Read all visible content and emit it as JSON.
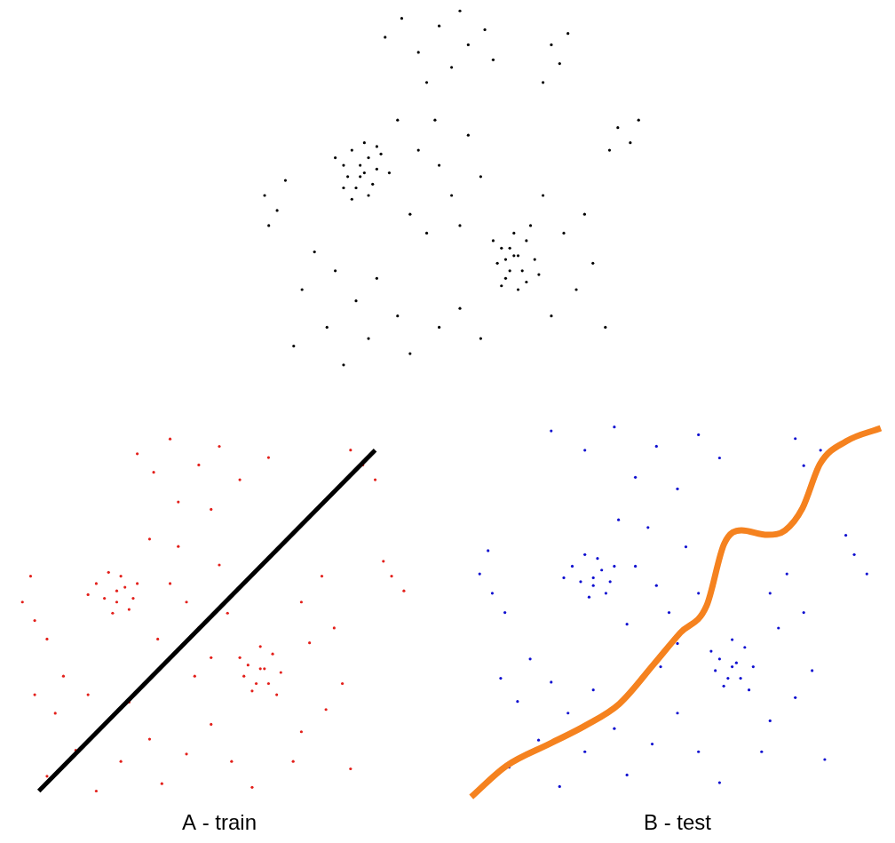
{
  "chart_data": [
    {
      "type": "scatter",
      "xlim": [
        0,
        100
      ],
      "ylim": [
        0,
        100
      ],
      "tick_labels": false,
      "grid": false,
      "series": [
        {
          "type": "scatter",
          "color": "#000000",
          "marker": "dot",
          "x": [
            22,
            24,
            26,
            28,
            30,
            25,
            29,
            23,
            27,
            31,
            26,
            28,
            20,
            33,
            24,
            27,
            30,
            22,
            60,
            62,
            64,
            66,
            61,
            65,
            63,
            68,
            59,
            62,
            66,
            64,
            58,
            67,
            63,
            61,
            69,
            60,
            32,
            36,
            40,
            45,
            50,
            52,
            56,
            42,
            48,
            58,
            72,
            74,
            76,
            70,
            88,
            91,
            93,
            86,
            3,
            6,
            8,
            4,
            40,
            45,
            48,
            44,
            52,
            38,
            50,
            55,
            35,
            42,
            15,
            20,
            12,
            25,
            30,
            18,
            10,
            28,
            35,
            22,
            38,
            45,
            50,
            55,
            72,
            78,
            82,
            75,
            80,
            70,
            85
          ],
          "values": [
            58,
            62,
            55,
            60,
            57,
            52,
            53,
            55,
            64,
            61,
            58,
            50,
            60,
            56,
            49,
            56,
            63,
            52,
            36,
            30,
            34,
            38,
            28,
            30,
            40,
            33,
            32,
            36,
            27,
            25,
            38,
            42,
            34,
            33,
            29,
            26,
            92,
            97,
            88,
            95,
            99,
            90,
            94,
            80,
            84,
            86,
            90,
            85,
            93,
            80,
            68,
            64,
            70,
            62,
            50,
            46,
            54,
            42,
            62,
            58,
            50,
            70,
            66,
            45,
            42,
            55,
            70,
            40,
            35,
            30,
            25,
            22,
            28,
            15,
            10,
            12,
            18,
            5,
            8,
            15,
            20,
            12,
            18,
            25,
            32,
            40,
            45,
            50,
            15
          ]
        }
      ]
    },
    {
      "type": "scatter",
      "title": "A - train",
      "xlim": [
        0,
        100
      ],
      "ylim": [
        0,
        100
      ],
      "tick_labels": false,
      "grid": false,
      "series": [
        {
          "type": "scatter",
          "color": "#e3201b",
          "marker": "dot",
          "x": [
            20,
            23,
            25,
            27,
            29,
            24,
            28,
            22,
            26,
            30,
            18,
            25,
            57,
            59,
            61,
            63,
            58,
            62,
            60,
            65,
            56,
            60,
            64,
            55,
            30,
            34,
            38,
            45,
            50,
            55,
            62,
            40,
            48,
            85,
            88,
            82,
            92,
            95,
            90,
            2,
            5,
            4,
            8,
            38,
            42,
            45,
            40,
            50,
            35,
            48,
            52,
            33,
            44,
            70,
            75,
            12,
            18,
            10,
            22,
            28,
            15,
            8,
            26,
            33,
            20,
            36,
            42,
            5,
            48,
            53,
            70,
            76,
            80,
            72,
            78,
            68,
            82,
            58
          ],
          "values": [
            60,
            63,
            55,
            59,
            56,
            52,
            53,
            56,
            62,
            60,
            57,
            58,
            38,
            33,
            37,
            41,
            31,
            33,
            43,
            36,
            35,
            37,
            30,
            40,
            95,
            90,
            99,
            92,
            97,
            88,
            94,
            82,
            80,
            92,
            88,
            96,
            62,
            58,
            66,
            55,
            50,
            62,
            45,
            60,
            55,
            48,
            70,
            65,
            45,
            40,
            52,
            72,
            35,
            55,
            62,
            35,
            30,
            25,
            22,
            28,
            15,
            8,
            12,
            18,
            4,
            6,
            14,
            30,
            22,
            12,
            20,
            26,
            33,
            44,
            48,
            12,
            10,
            5
          ]
        },
        {
          "type": "line",
          "color": "#000000",
          "line_style": "solid",
          "x": [
            6,
            88
          ],
          "values": [
            4,
            96
          ]
        }
      ]
    },
    {
      "type": "scatter",
      "title": "B - test",
      "xlim": [
        0,
        100
      ],
      "ylim": [
        0,
        100
      ],
      "tick_labels": false,
      "grid": false,
      "series": [
        {
          "type": "scatter",
          "color": "#1010d0",
          "marker": "dot",
          "x": [
            25,
            28,
            30,
            32,
            34,
            29,
            33,
            27,
            31,
            35,
            23,
            30,
            60,
            62,
            64,
            66,
            61,
            65,
            63,
            68,
            59,
            63,
            67,
            58,
            20,
            28,
            35,
            45,
            55,
            60,
            40,
            50,
            80,
            84,
            78,
            92,
            95,
            90,
            3,
            6,
            5,
            9,
            40,
            45,
            48,
            43,
            52,
            38,
            50,
            55,
            36,
            46,
            72,
            76,
            15,
            20,
            12,
            24,
            30,
            17,
            10,
            28,
            35,
            22,
            38,
            44,
            8,
            50,
            55,
            72,
            78,
            82,
            74,
            80,
            70,
            85,
            60
          ],
          "values": [
            62,
            65,
            57,
            61,
            58,
            54,
            55,
            58,
            64,
            62,
            59,
            59,
            38,
            33,
            37,
            41,
            31,
            33,
            43,
            36,
            35,
            36,
            30,
            40,
            97,
            92,
            98,
            93,
            96,
            90,
            85,
            82,
            88,
            92,
            95,
            65,
            60,
            70,
            60,
            55,
            66,
            50,
            62,
            57,
            50,
            72,
            67,
            47,
            42,
            55,
            74,
            36,
            55,
            60,
            38,
            32,
            27,
            24,
            30,
            17,
            10,
            14,
            20,
            5,
            8,
            16,
            33,
            24,
            14,
            22,
            28,
            35,
            46,
            50,
            14,
            12,
            6
          ]
        },
        {
          "type": "line",
          "color": "#f5821f",
          "line_style": "curve",
          "x": [
            1.0,
            9.3,
            19.7,
            28.0,
            36.2,
            44.5,
            50.7,
            56.9,
            61.1,
            65.2,
            71.4,
            75.6,
            79.7,
            83.9,
            90.1,
            98.3
          ],
          "values": [
            2.3,
            10.3,
            16.1,
            20.7,
            26.4,
            36.8,
            44.8,
            51.7,
            67.8,
            71.3,
            70.1,
            71.3,
            77.0,
            88.5,
            94.3,
            97.7
          ]
        }
      ]
    }
  ]
}
